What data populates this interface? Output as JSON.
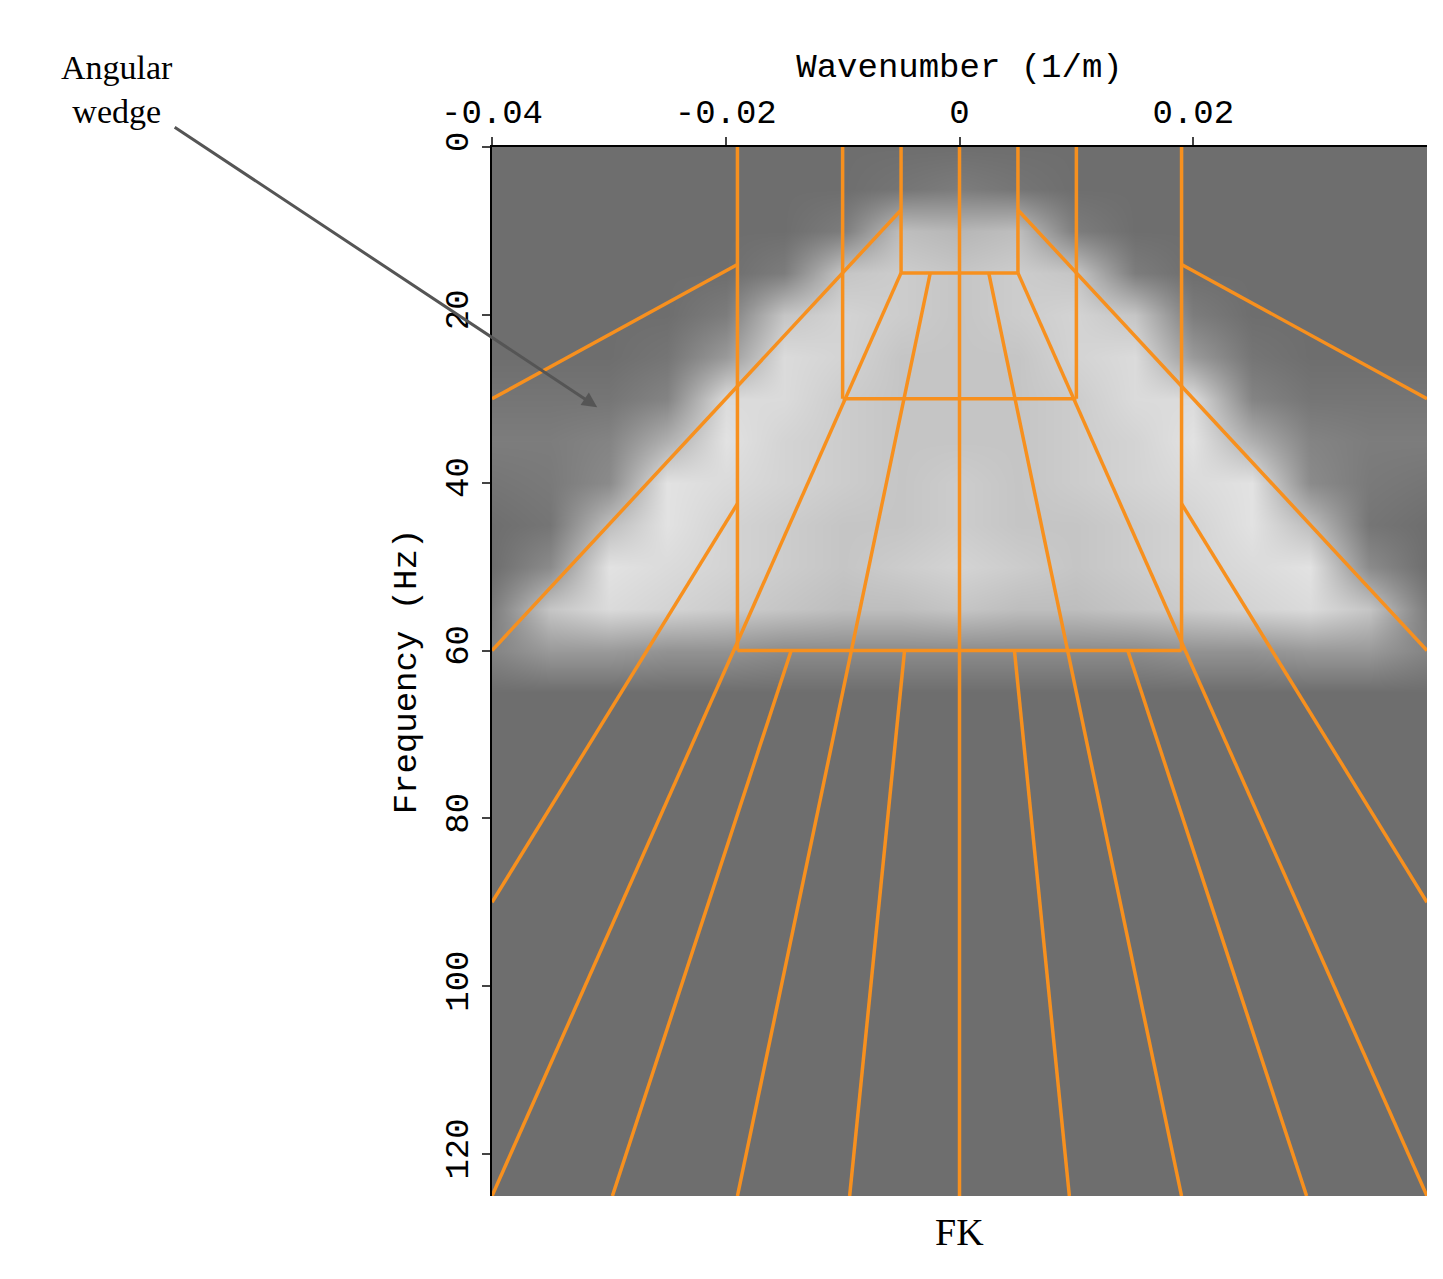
{
  "chart_data": {
    "type": "heatmap",
    "title": "FK",
    "xlabel": "Wavenumber (1/m)",
    "ylabel": "Frequency (Hz)",
    "xlim": [
      -0.04,
      0.04
    ],
    "ylim": [
      125,
      0
    ],
    "xticks": [
      -0.04,
      -0.02,
      0,
      0.02
    ],
    "yticks": [
      0,
      20,
      40,
      60,
      80,
      100,
      120
    ],
    "grid": false,
    "x": [
      -0.04,
      -0.035,
      -0.03,
      -0.025,
      -0.02,
      -0.015,
      -0.01,
      -0.005,
      0,
      0.005,
      0.01,
      0.015,
      0.02,
      0.025,
      0.03,
      0.035,
      0.04
    ],
    "y": [
      0,
      5,
      10,
      15,
      20,
      25,
      30,
      35,
      40,
      45,
      50,
      55,
      60,
      65,
      70,
      75,
      80,
      85,
      90,
      95,
      100,
      105,
      110,
      115,
      120,
      125
    ],
    "zlim": [
      0,
      1
    ],
    "z": [
      [
        0,
        0,
        0,
        0,
        0,
        0,
        0,
        0,
        0,
        0,
        0,
        0,
        0,
        0,
        0,
        0,
        0
      ],
      [
        0,
        0,
        0,
        0,
        0,
        0,
        0,
        0.05,
        0.1,
        0.05,
        0,
        0,
        0,
        0,
        0,
        0,
        0
      ],
      [
        0,
        0,
        0,
        0,
        0,
        0,
        0.1,
        0.55,
        0.5,
        0.55,
        0.1,
        0,
        0,
        0,
        0,
        0,
        0
      ],
      [
        0,
        0,
        0,
        0,
        0,
        0.1,
        0.6,
        0.65,
        0.6,
        0.65,
        0.6,
        0.1,
        0,
        0,
        0,
        0,
        0
      ],
      [
        0,
        0,
        0,
        0,
        0.1,
        0.6,
        0.7,
        0.65,
        0.6,
        0.65,
        0.7,
        0.6,
        0.1,
        0,
        0,
        0,
        0
      ],
      [
        0,
        0,
        0,
        0.05,
        0.3,
        0.75,
        0.7,
        0.6,
        0.6,
        0.6,
        0.7,
        0.75,
        0.3,
        0.05,
        0,
        0,
        0
      ],
      [
        0.05,
        0.05,
        0.05,
        0.15,
        0.75,
        0.75,
        0.65,
        0.6,
        0.6,
        0.6,
        0.65,
        0.75,
        0.75,
        0.15,
        0.05,
        0.05,
        0.05
      ],
      [
        0.1,
        0.1,
        0.15,
        0.45,
        0.8,
        0.7,
        0.65,
        0.6,
        0.6,
        0.6,
        0.65,
        0.7,
        0.8,
        0.45,
        0.15,
        0.1,
        0.1
      ],
      [
        0.05,
        0.08,
        0.2,
        0.8,
        0.75,
        0.7,
        0.65,
        0.6,
        0.65,
        0.6,
        0.65,
        0.7,
        0.75,
        0.8,
        0.2,
        0.08,
        0.05
      ],
      [
        0,
        0.05,
        0.55,
        0.8,
        0.7,
        0.65,
        0.6,
        0.6,
        0.65,
        0.6,
        0.6,
        0.65,
        0.7,
        0.8,
        0.55,
        0.05,
        0
      ],
      [
        0,
        0.2,
        0.8,
        0.75,
        0.7,
        0.65,
        0.6,
        0.65,
        0.7,
        0.65,
        0.6,
        0.65,
        0.7,
        0.75,
        0.8,
        0.2,
        0
      ],
      [
        0.1,
        0.6,
        0.75,
        0.7,
        0.65,
        0.6,
        0.55,
        0.55,
        0.6,
        0.55,
        0.55,
        0.6,
        0.65,
        0.7,
        0.75,
        0.6,
        0.1
      ],
      [
        0.15,
        0.3,
        0.3,
        0.25,
        0.25,
        0.2,
        0.2,
        0.2,
        0.2,
        0.2,
        0.2,
        0.2,
        0.25,
        0.25,
        0.3,
        0.3,
        0.15
      ],
      [
        0,
        0,
        0,
        0,
        0,
        0,
        0,
        0,
        0,
        0,
        0,
        0,
        0,
        0,
        0,
        0,
        0
      ],
      [
        0,
        0,
        0,
        0,
        0,
        0,
        0,
        0,
        0,
        0,
        0,
        0,
        0,
        0,
        0,
        0,
        0
      ],
      [
        0,
        0,
        0,
        0,
        0,
        0,
        0,
        0,
        0,
        0,
        0,
        0,
        0,
        0,
        0,
        0,
        0
      ],
      [
        0,
        0,
        0,
        0,
        0,
        0,
        0,
        0,
        0,
        0,
        0,
        0,
        0,
        0,
        0,
        0,
        0
      ],
      [
        0,
        0,
        0,
        0,
        0,
        0,
        0,
        0,
        0,
        0,
        0,
        0,
        0,
        0,
        0,
        0,
        0
      ],
      [
        0,
        0,
        0,
        0,
        0,
        0,
        0,
        0,
        0,
        0,
        0,
        0,
        0,
        0,
        0,
        0,
        0
      ],
      [
        0,
        0,
        0,
        0,
        0,
        0,
        0,
        0,
        0,
        0,
        0,
        0,
        0,
        0,
        0,
        0,
        0
      ],
      [
        0,
        0,
        0,
        0,
        0,
        0,
        0,
        0,
        0,
        0,
        0,
        0,
        0,
        0,
        0,
        0,
        0
      ],
      [
        0,
        0,
        0,
        0,
        0,
        0,
        0,
        0,
        0,
        0,
        0,
        0,
        0,
        0,
        0,
        0,
        0
      ],
      [
        0,
        0,
        0,
        0,
        0,
        0,
        0,
        0,
        0,
        0,
        0,
        0,
        0,
        0,
        0,
        0,
        0
      ],
      [
        0,
        0,
        0,
        0,
        0,
        0,
        0,
        0,
        0,
        0,
        0,
        0,
        0,
        0,
        0,
        0,
        0
      ],
      [
        0,
        0,
        0,
        0,
        0,
        0,
        0,
        0,
        0,
        0,
        0,
        0,
        0,
        0,
        0,
        0,
        0
      ],
      [
        0,
        0,
        0,
        0,
        0,
        0,
        0,
        0,
        0,
        0,
        0,
        0,
        0,
        0,
        0,
        0,
        0
      ]
    ],
    "series": [
      {
        "type": "line",
        "color": "#f7901e",
        "x": [
          0,
          0,
          null,
          -0.005,
          -0.005,
          null,
          0.005,
          0.005,
          null,
          -0.01,
          -0.01,
          null,
          0.01,
          0.01,
          null,
          -0.019,
          -0.019,
          null,
          0.019,
          0.019,
          null,
          -0.005,
          0.005,
          null,
          -0.01,
          0.01,
          null,
          -0.019,
          0.019,
          null,
          -0.005,
          -0.04,
          null,
          0.005,
          0.04,
          null,
          -0.019,
          -0.04,
          null,
          0.019,
          0.04,
          null,
          -0.019,
          -0.04,
          null,
          0.019,
          0.04,
          null,
          -0.005,
          -0.04,
          null,
          0.005,
          0.04,
          null,
          -0.0025,
          -0.019,
          null,
          0.0025,
          0.019,
          null,
          -0.0047,
          -0.0094,
          null,
          0.0047,
          0.0094,
          null,
          -0.0144,
          -0.0297,
          null,
          0.0144,
          0.0297
        ],
        "y": [
          0,
          125,
          null,
          0,
          15,
          null,
          0,
          15,
          null,
          0,
          30,
          null,
          0,
          30,
          null,
          0,
          60,
          null,
          0,
          60,
          null,
          15,
          15,
          null,
          30,
          30,
          null,
          60,
          60,
          null,
          7.5,
          60,
          null,
          7.5,
          60,
          null,
          14,
          30,
          null,
          14,
          30,
          null,
          42.5,
          90,
          null,
          42.5,
          90,
          null,
          15,
          125,
          null,
          15,
          125,
          null,
          15,
          125,
          null,
          15,
          125,
          null,
          60,
          125,
          null,
          60,
          125,
          null,
          60,
          125,
          null,
          60,
          125
        ]
      }
    ],
    "annotations": [
      {
        "text": "Angular wedge",
        "x": -0.031,
        "y": 31
      }
    ]
  }
}
